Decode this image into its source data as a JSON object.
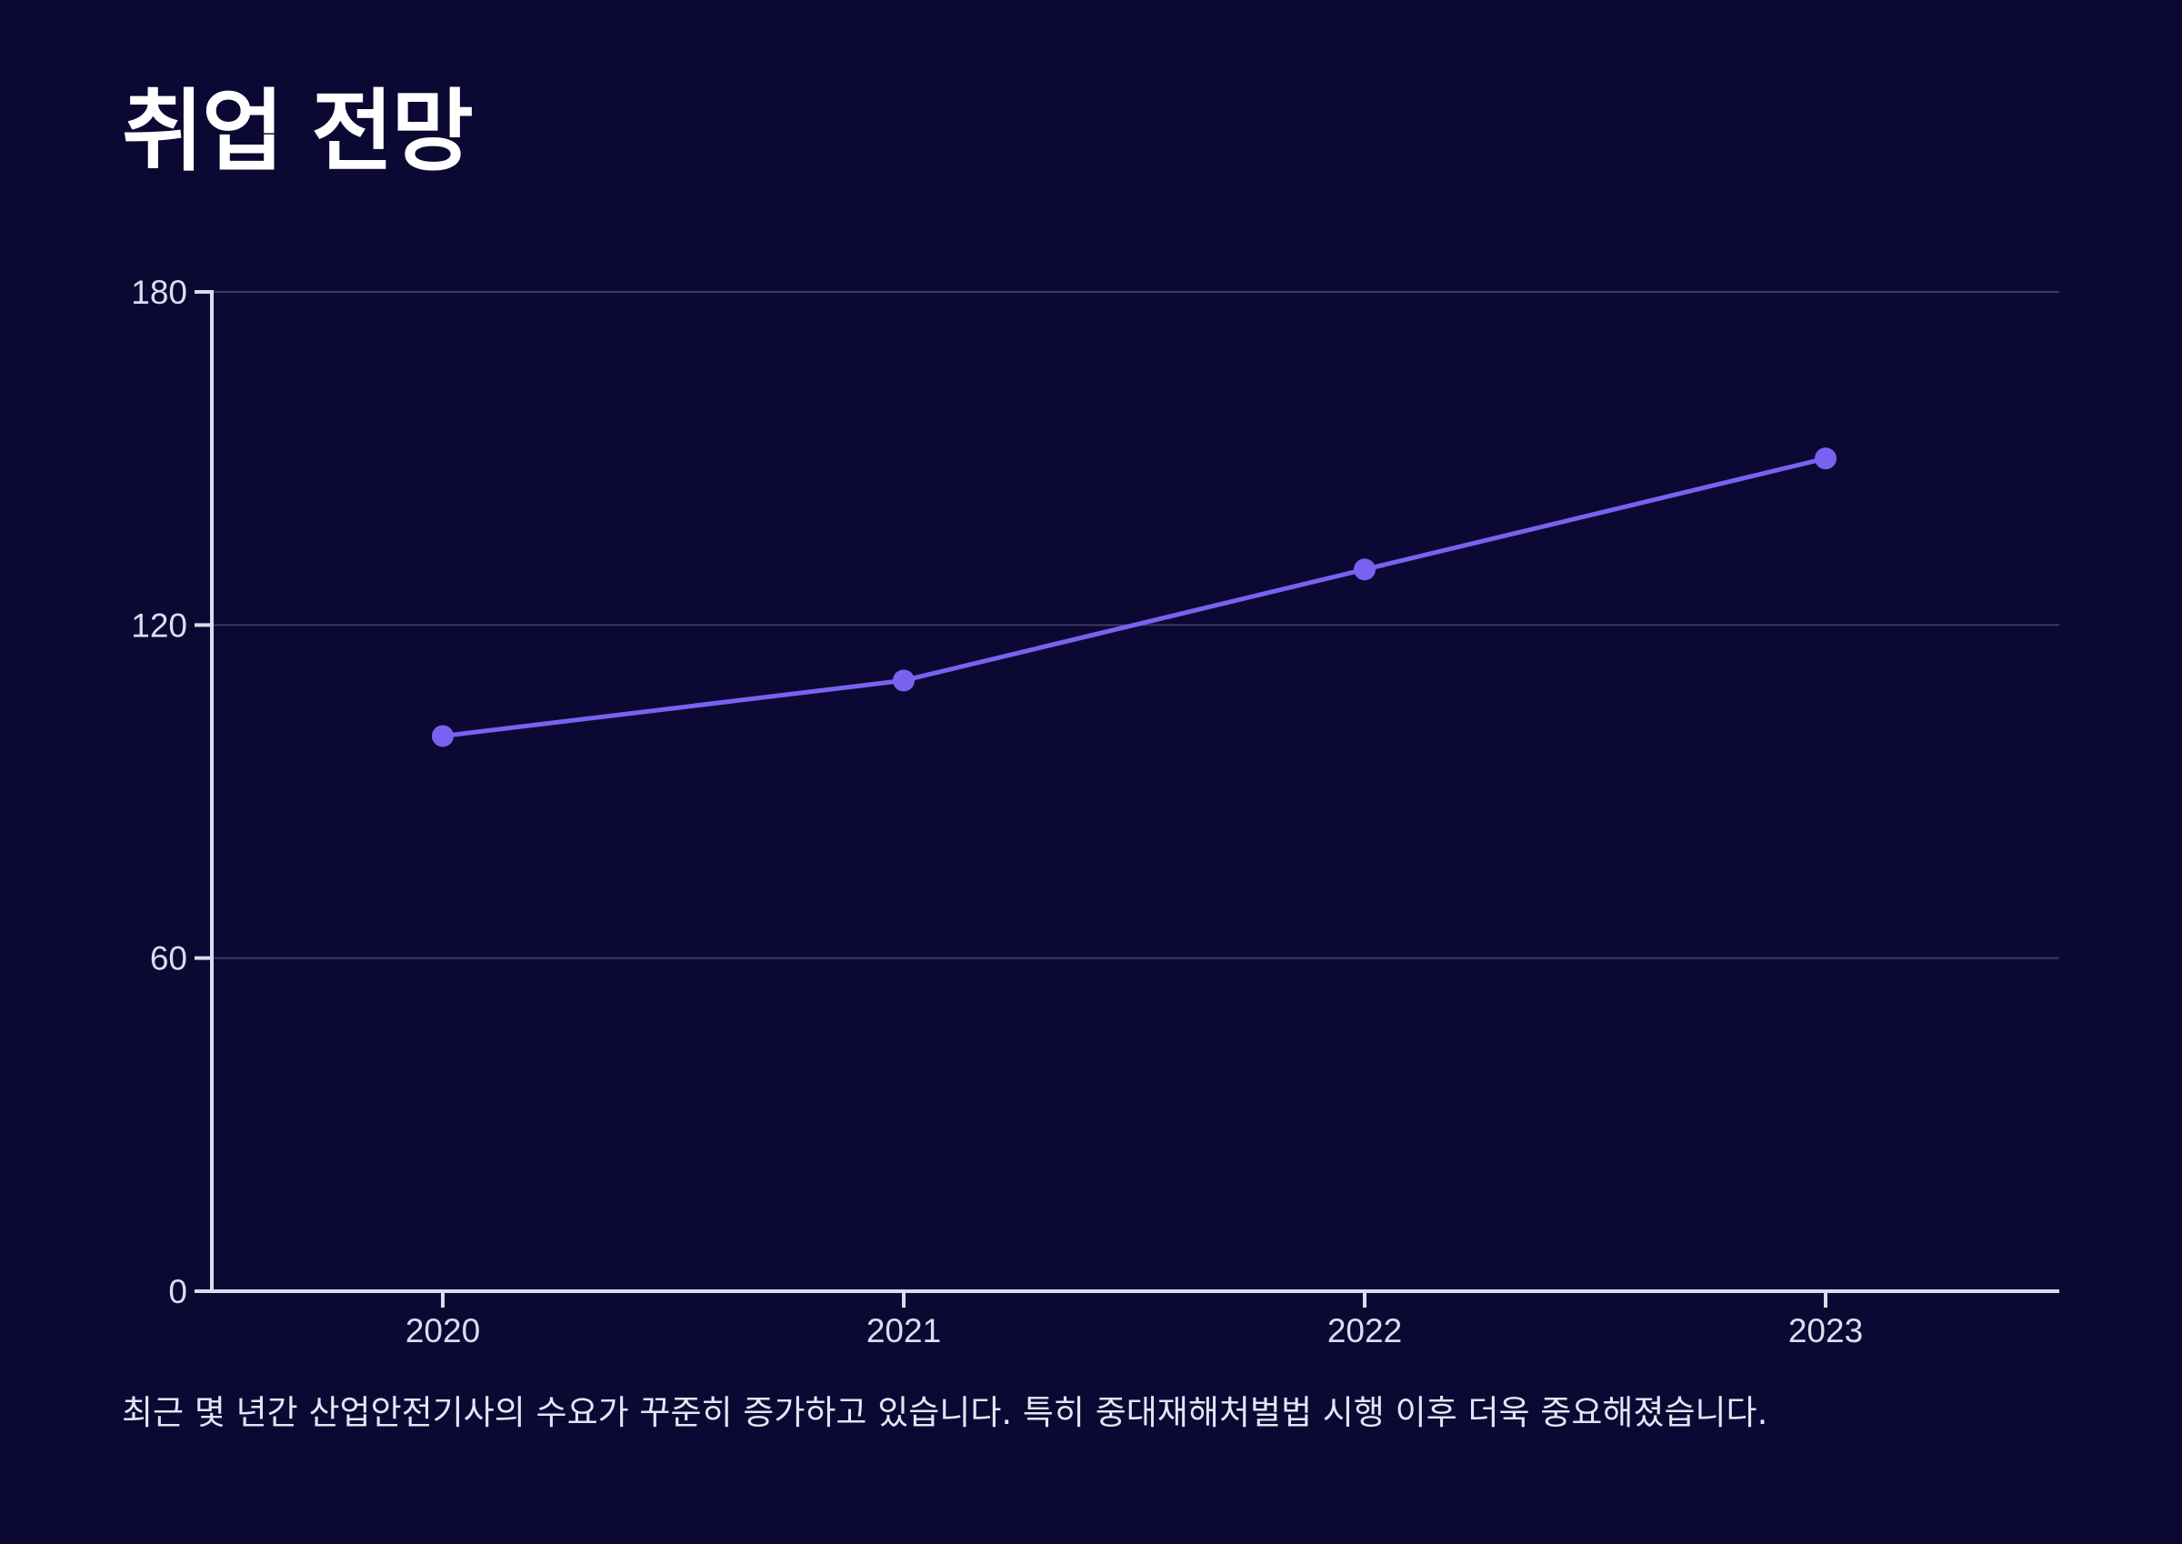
{
  "page": {
    "title": "취업 전망",
    "caption": "최근 몇 년간 산업안전기사의 수요가 꾸준히 증가하고 있습니다. 특히 중대재해처벌법 시행 이후 더욱 중요해졌습니다."
  },
  "colors": {
    "background": "#0b0933",
    "line": "#7b61f0",
    "axis": "#dcdcf0",
    "grid": "#3c3a62"
  },
  "chart_data": {
    "type": "line",
    "title": "취업 전망",
    "xlabel": "",
    "ylabel": "",
    "categories": [
      "2020",
      "2021",
      "2022",
      "2023"
    ],
    "series": [
      {
        "values": [
          100,
          110,
          130,
          150
        ]
      }
    ],
    "ylim": [
      0,
      180
    ],
    "yticks": [
      0,
      60,
      120,
      180
    ],
    "grid": true,
    "legend": "none"
  }
}
